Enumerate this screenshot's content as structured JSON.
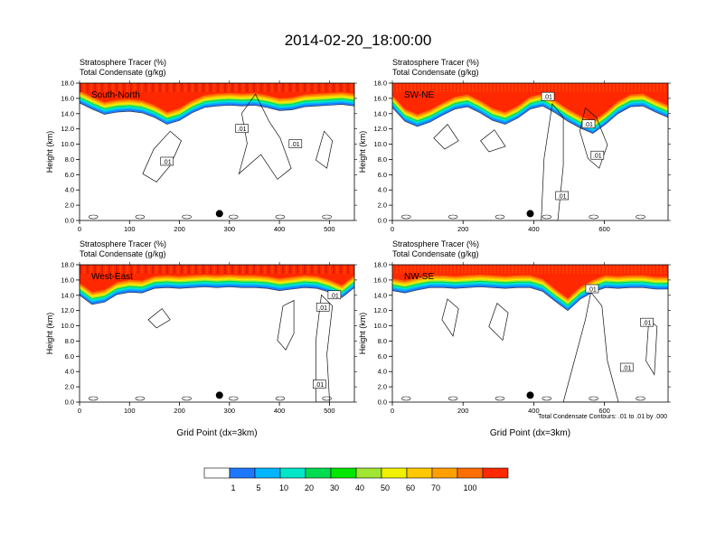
{
  "figure": {
    "title": "2014-02-20_18:00:00",
    "contour_note": "Total Condensate Contours: .01 to .01 by .000",
    "xlabel": "Grid Point (dx=3km)"
  },
  "chart_data": [
    {
      "type": "heatmap",
      "panel_label": "South-North",
      "line1": "Stratosphere Tracer   (%)",
      "line2": "Total Condensate   (g/kg)",
      "ylabel": "Height (km)",
      "xlabel": "",
      "xlim": [
        0,
        550
      ],
      "ylim": [
        0,
        18
      ],
      "xticks": [
        0,
        100,
        200,
        300,
        400,
        500
      ],
      "yticks": [
        "0.0",
        "2.0",
        "4.0",
        "6.0",
        "8.0",
        "10.0",
        "12.0",
        "14.0",
        "16.0",
        "18.0"
      ],
      "marker_x": 280,
      "tracer_base_km": [
        15.4,
        14.6,
        13.9,
        14.2,
        14.3,
        14.1,
        13.5,
        12.6,
        13.1,
        14.1,
        14.8,
        15.0,
        15.1,
        15.0,
        15.1,
        14.8,
        14.4,
        14.5,
        14.9,
        15.0,
        15.1,
        15.2,
        15.0
      ],
      "contour_labels": [
        {
          "text": ".01",
          "x": 175,
          "y": 7.7
        },
        {
          "text": ".01",
          "x": 325,
          "y": 12.0
        },
        {
          "text": ".01",
          "x": 432,
          "y": 10.0
        }
      ]
    },
    {
      "type": "heatmap",
      "panel_label": "SW-NE",
      "line1": "Stratosphere Tracer   (%)",
      "line2": "Total Condensate   (g/kg)",
      "ylabel": "Height (km)",
      "xlabel": "",
      "xlim": [
        0,
        780
      ],
      "ylim": [
        0,
        18
      ],
      "xticks": [
        0,
        200,
        400,
        600
      ],
      "yticks": [
        "0.0",
        "2.0",
        "4.0",
        "6.0",
        "8.0",
        "10.0",
        "12.0",
        "14.0",
        "16.0",
        "18.0"
      ],
      "marker_x": 390,
      "tracer_base_km": [
        14.8,
        13.0,
        12.3,
        12.9,
        13.8,
        14.6,
        14.9,
        14.1,
        13.1,
        12.6,
        13.4,
        14.6,
        15.0,
        14.1,
        13.0,
        12.1,
        11.4,
        12.6,
        14.0,
        14.9,
        15.0,
        14.2,
        13.5
      ],
      "contour_labels": [
        {
          "text": ".01",
          "x": 440,
          "y": 16.2
        },
        {
          "text": ".01",
          "x": 555,
          "y": 12.6
        },
        {
          "text": ".01",
          "x": 580,
          "y": 8.5
        },
        {
          "text": ".01",
          "x": 480,
          "y": 3.2
        }
      ]
    },
    {
      "type": "heatmap",
      "panel_label": "West-East",
      "line1": "Stratosphere Tracer   (%)",
      "line2": "Total Condensate   (g/kg)",
      "ylabel": "Height (km)",
      "xlabel": "Grid Point (dx=3km)",
      "xlim": [
        0,
        550
      ],
      "ylim": [
        0,
        18
      ],
      "xticks": [
        0,
        100,
        200,
        300,
        400,
        500
      ],
      "yticks": [
        "0.0",
        "2.0",
        "4.0",
        "6.0",
        "8.0",
        "10.0",
        "12.0",
        "14.0",
        "16.0",
        "18.0"
      ],
      "marker_x": 280,
      "tracer_base_km": [
        14.0,
        12.8,
        13.1,
        14.1,
        14.4,
        14.3,
        14.9,
        15.0,
        14.9,
        15.0,
        15.1,
        15.0,
        15.1,
        15.0,
        15.0,
        14.9,
        14.6,
        14.8,
        15.0,
        14.9,
        14.4,
        13.7,
        15.0
      ],
      "contour_labels": [
        {
          "text": ".01",
          "x": 510,
          "y": 14.0
        },
        {
          "text": ".01",
          "x": 487,
          "y": 12.4
        },
        {
          "text": ".01",
          "x": 480,
          "y": 2.3
        }
      ]
    },
    {
      "type": "heatmap",
      "panel_label": "NW-SE",
      "line1": "Stratosphere Tracer   (%)",
      "line2": "Total Condensate   (g/kg)",
      "ylabel": "Height (km)",
      "xlabel": "Grid Point (dx=3km)",
      "xlim": [
        0,
        780
      ],
      "ylim": [
        0,
        18
      ],
      "xticks": [
        0,
        200,
        400,
        600
      ],
      "yticks": [
        "0.0",
        "2.0",
        "4.0",
        "6.0",
        "8.0",
        "10.0",
        "12.0",
        "14.0",
        "16.0",
        "18.0"
      ],
      "marker_x": 390,
      "tracer_base_km": [
        14.6,
        14.3,
        14.7,
        15.0,
        15.0,
        14.9,
        15.0,
        15.1,
        15.0,
        14.9,
        15.0,
        15.0,
        14.5,
        13.2,
        12.0,
        13.5,
        14.4,
        15.0,
        14.9,
        15.0,
        15.0,
        14.8,
        14.8
      ],
      "contour_labels": [
        {
          "text": ".01",
          "x": 565,
          "y": 14.8
        },
        {
          "text": ".01",
          "x": 720,
          "y": 10.4
        },
        {
          "text": ".01",
          "x": 663,
          "y": 4.5
        }
      ]
    }
  ],
  "colorbar": {
    "labels": [
      "1",
      "5",
      "10",
      "20",
      "30",
      "40",
      "50",
      "60",
      "70",
      "100"
    ],
    "colors": [
      "#ffffff",
      "#1e78ff",
      "#00b4ff",
      "#00e6c8",
      "#00dc50",
      "#00e600",
      "#a0e632",
      "#f0f000",
      "#ffc800",
      "#ffa000",
      "#ff6e00",
      "#ff2800"
    ]
  }
}
